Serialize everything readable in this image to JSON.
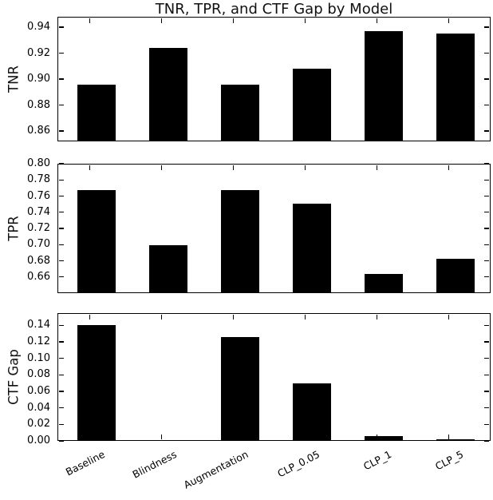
{
  "figure": {
    "background": "#ffffff",
    "bar_color": "#000000",
    "axis_color": "#000000",
    "text_color": "#111111"
  },
  "chart_data": {
    "type": "bar",
    "title": "TNR, TPR, and CTF Gap by Model",
    "categories": [
      "Baseline",
      "Blindness",
      "Augmentation",
      "CLP_0.05",
      "CLP_1",
      "CLP_5"
    ],
    "subplots": [
      {
        "ylabel": "TNR",
        "ylim": [
          0.852,
          0.948
        ],
        "yticks": [
          0.86,
          0.88,
          0.9,
          0.92,
          0.94
        ],
        "values": [
          0.896,
          0.924,
          0.896,
          0.908,
          0.937,
          0.935
        ]
      },
      {
        "ylabel": "TPR",
        "ylim": [
          0.64,
          0.8
        ],
        "yticks": [
          0.66,
          0.68,
          0.7,
          0.72,
          0.74,
          0.76,
          0.78,
          0.8
        ],
        "values": [
          0.767,
          0.699,
          0.767,
          0.751,
          0.664,
          0.682
        ]
      },
      {
        "ylabel": "CTF Gap",
        "ylim": [
          0,
          0.155
        ],
        "yticks": [
          0.0,
          0.02,
          0.04,
          0.06,
          0.08,
          0.1,
          0.12,
          0.14
        ],
        "values": [
          0.14,
          0.0005,
          0.126,
          0.07,
          0.006,
          0.002
        ]
      }
    ],
    "layout_hints": {
      "grid": false,
      "legend": "none",
      "tick_direction": "in",
      "tick_label_format": "2-decimals",
      "xticklabel_rotation_deg": 27,
      "bar_color": "#000000"
    }
  }
}
